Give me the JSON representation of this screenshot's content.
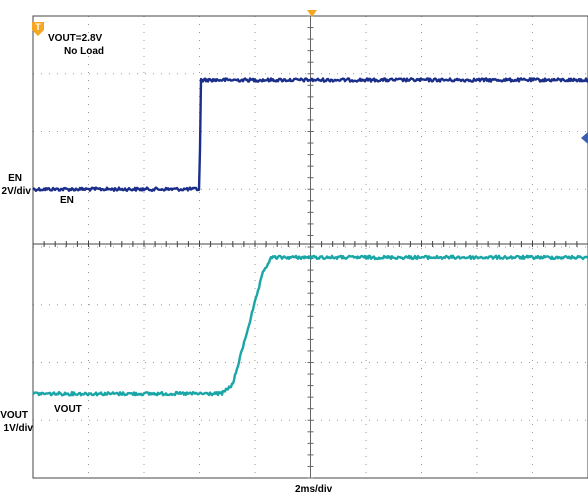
{
  "chart_data": {
    "type": "line",
    "annotation": {
      "line1": "VOUT=2.8V",
      "line2": "No Load"
    },
    "time_axis": {
      "label": "2ms/div",
      "divisions": 10,
      "ms_per_div": 2,
      "range_ms": [
        0,
        20
      ]
    },
    "channels": [
      {
        "id": "en",
        "name": "EN",
        "scale_label_top": "EN",
        "scale_label_bottom": "2V/div",
        "scale": "2V/div",
        "color": "#1a2e8a",
        "points_ms_div": [
          [
            0,
            -0.1
          ],
          [
            6.0,
            -0.1
          ],
          [
            6.05,
            2.0
          ],
          [
            20,
            2.0
          ]
        ]
      },
      {
        "id": "vout",
        "name": "VOUT",
        "scale_label_top": "VOUT",
        "scale_label_bottom": "1V/div",
        "scale": "1V/div",
        "color": "#1aa6a6",
        "points_ms_div": [
          [
            0,
            -0.1
          ],
          [
            6.8,
            -0.1
          ],
          [
            7.2,
            0.1
          ],
          [
            8.3,
            2.5
          ],
          [
            8.6,
            2.8
          ],
          [
            20,
            2.8
          ]
        ]
      }
    ],
    "grid": true,
    "trigger_marker": "T",
    "top_marker": "trigger-position-arrow",
    "right_marker": "trigger-level-arrow"
  }
}
